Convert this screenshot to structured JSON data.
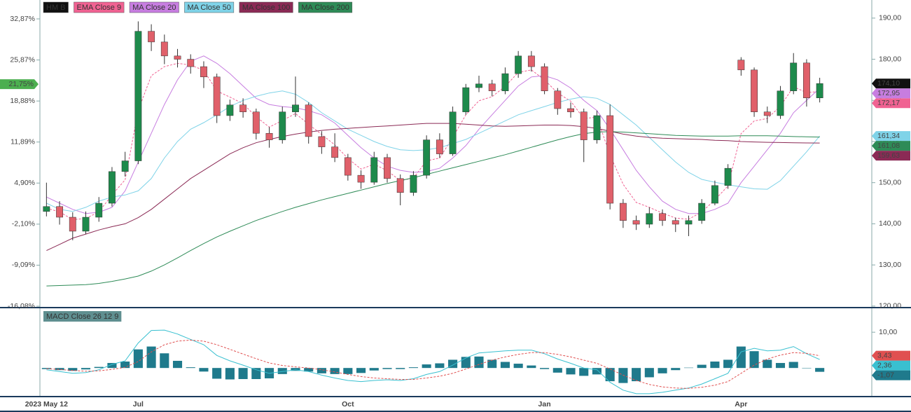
{
  "chart_data": [
    {
      "type": "candlestick",
      "name": "HM B",
      "color": "#111111",
      "up_color": "#1e8a4c",
      "down_color": "#e0606a",
      "grid": false,
      "categories": [
        "2023 May 12",
        null,
        null,
        null,
        null,
        null,
        null,
        "Jul",
        null,
        null,
        null,
        null,
        null,
        null,
        null,
        null,
        null,
        null,
        null,
        null,
        null,
        null,
        null,
        "Oct",
        null,
        null,
        null,
        null,
        null,
        null,
        null,
        null,
        null,
        null,
        null,
        null,
        null,
        null,
        "Jan",
        null,
        null,
        null,
        null,
        null,
        null,
        null,
        null,
        null,
        null,
        null,
        null,
        null,
        null,
        "Apr",
        null,
        null,
        null,
        null,
        null,
        null
      ],
      "open": [
        143,
        144.2,
        141.6,
        138.2,
        141.6,
        145,
        152.7,
        155.3,
        186.8,
        184.2,
        180.8,
        180,
        178.2,
        175.7,
        166.3,
        168.9,
        167.2,
        162,
        160.4,
        167.2,
        168.9,
        161.2,
        158.7,
        156.1,
        151.8,
        150.1,
        156.1,
        151,
        147.6,
        151.8,
        160.4,
        157,
        167.2,
        173.1,
        174,
        172.3,
        176.5,
        180.8,
        178.2,
        172.3,
        168,
        167.2,
        160.4,
        166.3,
        145,
        140.8,
        139.9,
        142.5,
        140.8,
        139.9,
        140.8,
        145,
        149.3,
        179.8,
        177.4,
        167.2,
        166.3,
        172.3,
        179.1,
        170.6
      ],
      "high": [
        150,
        145.5,
        142.8,
        143,
        146.5,
        153.8,
        157.5,
        189.2,
        188.5,
        186,
        182.5,
        181.2,
        179.5,
        176.5,
        170.2,
        170.5,
        168,
        163.5,
        168.5,
        175.8,
        169.5,
        162.5,
        162,
        157,
        153,
        157.5,
        157,
        152,
        152.8,
        161.5,
        162,
        168.5,
        174,
        176,
        175,
        178,
        182,
        182,
        179,
        173,
        169.5,
        168,
        167.5,
        169,
        146,
        142,
        144,
        143.5,
        141.5,
        142,
        146,
        150.5,
        154.5,
        180.5,
        178,
        168.5,
        173.5,
        181.5,
        180,
        175.5
      ],
      "low": [
        141.8,
        139.8,
        136,
        137.5,
        140.5,
        144.2,
        151.5,
        154.5,
        182,
        178.8,
        178,
        176.5,
        173,
        164.5,
        165,
        165.8,
        160.5,
        158.5,
        159.5,
        166,
        159.5,
        157,
        155,
        150.5,
        148.5,
        149.5,
        150,
        144.5,
        146.8,
        151,
        156,
        156.5,
        166.5,
        172,
        171,
        171.5,
        175.5,
        177,
        171.5,
        166.5,
        165.8,
        155,
        159.5,
        143.5,
        139,
        138.5,
        139,
        139.5,
        138,
        137,
        140,
        144.5,
        148.5,
        176,
        166,
        164.5,
        165.5,
        171.5,
        168.5,
        169.5
      ],
      "close": [
        144.2,
        141.6,
        138.2,
        141.6,
        145,
        152.7,
        155.3,
        186.8,
        184.2,
        180.8,
        180,
        178.2,
        175.7,
        166.3,
        168.9,
        167.2,
        162,
        160.4,
        167.2,
        168.9,
        161.2,
        158.7,
        156.1,
        151.8,
        150.1,
        156.1,
        151,
        147.6,
        151.8,
        160.4,
        157,
        167.2,
        173.1,
        174,
        172.3,
        176.5,
        180.8,
        178.2,
        172.3,
        168,
        167.2,
        160.4,
        166.3,
        145,
        140.8,
        139.9,
        142.5,
        140.8,
        139.9,
        140.8,
        145,
        149.3,
        153.5,
        177.4,
        167.2,
        166.3,
        172.3,
        179.1,
        170.6,
        174.1
      ],
      "last": {
        "value": 174.1,
        "label": "174,10"
      },
      "last_pct": {
        "value": 21.75,
        "label": "21,75%"
      },
      "ylim": [
        119.8,
        194.4
      ],
      "yticks": [
        {
          "value": 190,
          "label": "190,00"
        },
        {
          "value": 180,
          "label": "180,00"
        },
        {
          "value": 170,
          "label": "170,00"
        },
        {
          "value": 160,
          "label": "160,00"
        },
        {
          "value": 150,
          "label": "150,00"
        },
        {
          "value": 140,
          "label": "140,00"
        },
        {
          "value": 130,
          "label": "130,00"
        },
        {
          "value": 120,
          "label": "120,00"
        }
      ],
      "y2lim": [
        -16.2,
        36.09
      ],
      "y2ticks": [
        {
          "value": 32.87,
          "label": "32,87%"
        },
        {
          "value": 25.87,
          "label": "25,87%"
        },
        {
          "value": 18.88,
          "label": "18,88%"
        },
        {
          "value": 11.89,
          "label": "11,89%"
        },
        {
          "value": 4.9,
          "label": "4,90%"
        },
        {
          "value": -2.1,
          "label": "-2,10%"
        },
        {
          "value": -9.09,
          "label": "-9,09%"
        },
        {
          "value": -16.08,
          "label": "-16,08%"
        }
      ],
      "series": [
        {
          "name": "EMA Close 9",
          "color": "#f06292",
          "dash": true,
          "values": [
            143.8,
            142.9,
            141,
            141.3,
            142.9,
            147,
            150.7,
            167.6,
            176,
            178.2,
            179,
            178.6,
            177.3,
            172.3,
            170.8,
            169.2,
            166,
            163.5,
            165.1,
            166.8,
            164.2,
            161.7,
            159.2,
            155.9,
            153.3,
            154.5,
            152.9,
            150.5,
            151.1,
            155.3,
            156,
            161,
            166.5,
            169.9,
            170.9,
            173.4,
            176.8,
            177.4,
            175,
            171.8,
            169.8,
            165.6,
            165.9,
            156.7,
            149.6,
            145.2,
            144,
            142.6,
            141.4,
            141.1,
            142.9,
            145.8,
            149.2,
            161.9,
            165,
            165.6,
            168.6,
            173.3,
            171.9,
            172.17
          ],
          "last": {
            "value": 172.17,
            "label": "172,17"
          }
        },
        {
          "name": "MA Close 20",
          "color": "#c77de0",
          "values": [
            146.5,
            145,
            143.5,
            142.5,
            142.8,
            144,
            148,
            155,
            162,
            169,
            175,
            179.5,
            180.8,
            179,
            176.5,
            173.5,
            170.5,
            169,
            168.5,
            168.2,
            167.5,
            166.5,
            164.5,
            161.5,
            158.5,
            156,
            154,
            153,
            152.5,
            152.7,
            153.5,
            156,
            159,
            163,
            166.5,
            170,
            173.5,
            175.7,
            176,
            175,
            173,
            170,
            167.5,
            163,
            158,
            153,
            149,
            145.5,
            143.5,
            142.5,
            142.5,
            143.5,
            145,
            150,
            154,
            158,
            162,
            167,
            170,
            172.95
          ],
          "last": {
            "value": 172.95,
            "label": "172,95"
          }
        },
        {
          "name": "MA Close 50",
          "color": "#7fd3e8",
          "values": [
            145,
            143.5,
            143,
            144,
            145.5,
            146.5,
            147,
            148,
            151,
            156,
            160,
            163,
            164.6,
            166.5,
            168.5,
            170,
            171,
            171.8,
            172.3,
            171.5,
            169.5,
            167,
            165,
            163,
            161.5,
            160,
            158.8,
            158,
            157.8,
            158,
            158.5,
            159.5,
            160.5,
            162,
            163.5,
            165,
            166.5,
            167.5,
            168.5,
            169.5,
            170.3,
            170.9,
            170.5,
            169,
            166.5,
            164,
            161,
            158,
            155,
            152.5,
            150.8,
            150.1,
            149.5,
            149,
            148.5,
            148.4,
            150.5,
            154,
            157.5,
            161.34
          ],
          "last": {
            "value": 161.34,
            "label": "161,34"
          }
        },
        {
          "name": "MA Close 100",
          "color": "#8b2a55",
          "values": [
            133.5,
            135,
            136.5,
            137.5,
            138.5,
            139.3,
            140,
            141.5,
            143.5,
            146,
            148.5,
            151,
            153,
            155,
            157,
            158.5,
            159.7,
            160.5,
            161.2,
            161.8,
            162.3,
            162.7,
            163,
            163.2,
            163.4,
            163.6,
            163.8,
            164,
            164.2,
            164.4,
            164.4,
            164.4,
            164.2,
            164,
            163.8,
            163.7,
            163.8,
            163.9,
            164,
            164,
            163.9,
            163.6,
            163.2,
            162.5,
            161.8,
            161.3,
            161,
            160.8,
            160.7,
            160.6,
            160.5,
            160.3,
            160.2,
            160,
            159.9,
            159.8,
            159.75,
            159.7,
            159.65,
            159.63
          ],
          "last": {
            "value": 159.63,
            "label": "159,63"
          }
        },
        {
          "name": "MA Close 200",
          "color": "#2e8b57",
          "values": [
            124.9,
            125,
            125.1,
            125.2,
            125.5,
            126,
            126.6,
            127.3,
            128.5,
            130,
            131.7,
            133.5,
            135.2,
            136.8,
            138.2,
            139.5,
            140.8,
            141.9,
            143,
            144,
            144.9,
            145.8,
            146.6,
            147.4,
            148.2,
            149,
            149.8,
            150.5,
            151.2,
            152,
            152.8,
            153.6,
            154.4,
            155.2,
            156,
            156.8,
            157.7,
            158.6,
            159.5,
            160.4,
            161.2,
            161.9,
            162.3,
            162.4,
            162.3,
            162.1,
            161.9,
            161.7,
            161.5,
            161.4,
            161.3,
            161.3,
            161.3,
            161.4,
            161.4,
            161.4,
            161.3,
            161.2,
            161.15,
            161.08
          ],
          "last": {
            "value": 161.08,
            "label": "161,08"
          }
        }
      ]
    },
    {
      "type": "macd",
      "title": "MACD Close 26 12 9",
      "ylim": [
        -8.0,
        16.3
      ],
      "yticks": [
        {
          "value": 10,
          "label": "10,00"
        }
      ],
      "series": [
        {
          "style": "bar",
          "color": "#1f7a8c",
          "values": [
            -0.3,
            -0.6,
            -0.8,
            -0.4,
            0.3,
            1.4,
            1.8,
            5.2,
            6,
            4.1,
            2,
            0.2,
            -1,
            -3,
            -3.2,
            -3.1,
            -3.1,
            -2.9,
            -1.7,
            -0.8,
            -1,
            -1.5,
            -1.7,
            -1.7,
            -1.4,
            -0.7,
            -0.3,
            -0.3,
            0.2,
            1,
            1.3,
            2.3,
            3.1,
            3.2,
            2.3,
            1.7,
            1.2,
            0.7,
            -0.3,
            -1.3,
            -1.8,
            -2.2,
            -1.8,
            -3.7,
            -4.2,
            -3.7,
            -2.6,
            -1.5,
            -0.6,
            0.1,
            0.9,
            1.8,
            2.3,
            6,
            4.7,
            2.3,
            1.4,
            1.7,
            -0.1,
            -1.07
          ],
          "last": {
            "value": -1.07,
            "label": "-1,07"
          }
        },
        {
          "style": "line",
          "color": "#39c0d0",
          "values": [
            -0.5,
            -1,
            -1.5,
            -1.3,
            -0.5,
            1,
            2,
            7,
            10.5,
            10.6,
            9.5,
            8,
            6.5,
            3.5,
            2,
            0.8,
            -0.5,
            -1.5,
            -1,
            -0.5,
            -1,
            -2,
            -2.8,
            -3.5,
            -3.8,
            -3.5,
            -3.3,
            -3.5,
            -3,
            -1.8,
            -1,
            0.8,
            2.8,
            4.2,
            4.5,
            4.8,
            5,
            5,
            4,
            2.5,
            1.3,
            0,
            -0.5,
            -4,
            -6.2,
            -7.2,
            -7.2,
            -6.8,
            -6.2,
            -5.6,
            -4.5,
            -3,
            -1.5,
            4.5,
            5.5,
            4.8,
            5,
            6,
            4,
            2.36
          ],
          "last": {
            "value": 2.36,
            "label": "2,36"
          }
        },
        {
          "style": "line",
          "dash": true,
          "color": "#e05050",
          "values": [
            -0.2,
            -0.4,
            -0.7,
            -0.9,
            -0.8,
            -0.4,
            0.2,
            1.8,
            4.5,
            6.5,
            7.5,
            7.8,
            7.5,
            6.5,
            5.2,
            3.9,
            2.6,
            1.4,
            0.7,
            0.3,
            0,
            -0.5,
            -1.1,
            -1.8,
            -2.4,
            -2.8,
            -3,
            -3.2,
            -3.2,
            -2.8,
            -2.3,
            -1.5,
            -0.3,
            1,
            2.2,
            3.1,
            3.8,
            4.3,
            4.3,
            3.8,
            3.1,
            2.2,
            1.3,
            -0.3,
            -2,
            -3.5,
            -4.6,
            -5.3,
            -5.6,
            -5.7,
            -5.4,
            -4.8,
            -3.8,
            -1.5,
            0.8,
            2.5,
            3.6,
            4.3,
            4.1,
            3.43
          ],
          "last": {
            "value": 3.43,
            "label": "3,43"
          }
        }
      ]
    }
  ]
}
